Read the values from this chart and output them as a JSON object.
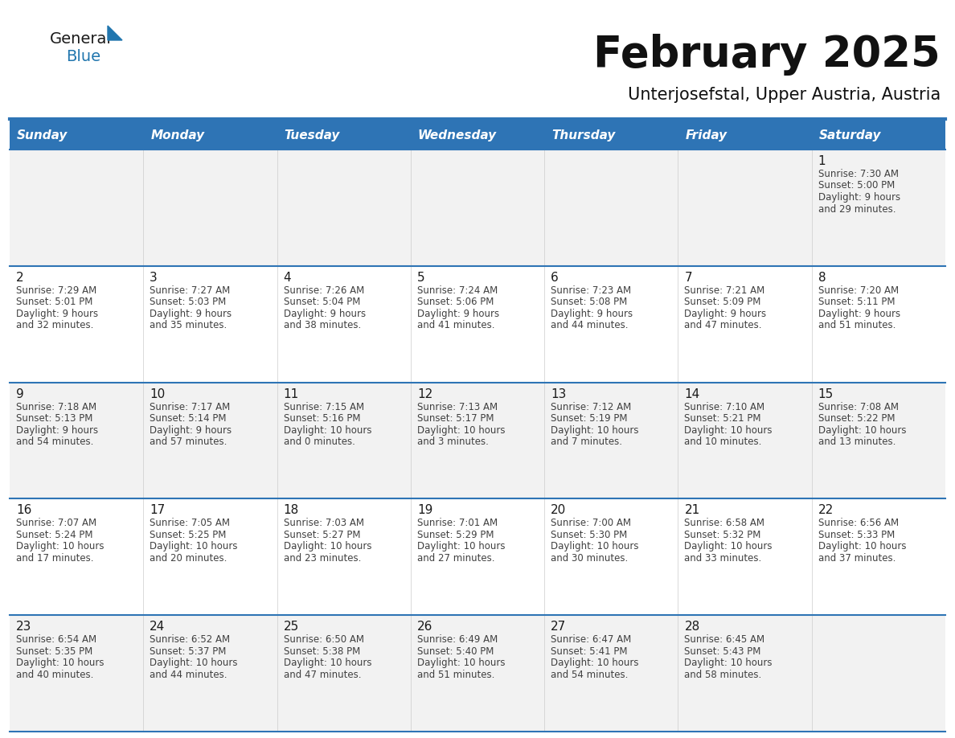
{
  "title": "February 2025",
  "subtitle": "Unterjosefstal, Upper Austria, Austria",
  "header_bg": "#2E74B5",
  "header_text": "#FFFFFF",
  "row_bg": [
    "#F2F2F2",
    "#FFFFFF",
    "#F2F2F2",
    "#FFFFFF",
    "#F2F2F2"
  ],
  "day_names": [
    "Sunday",
    "Monday",
    "Tuesday",
    "Wednesday",
    "Thursday",
    "Friday",
    "Saturday"
  ],
  "days": [
    {
      "day": 1,
      "col": 6,
      "row": 0,
      "sunrise": "7:30 AM",
      "sunset": "5:00 PM",
      "daylight_line1": "Daylight: 9 hours",
      "daylight_line2": "and 29 minutes."
    },
    {
      "day": 2,
      "col": 0,
      "row": 1,
      "sunrise": "7:29 AM",
      "sunset": "5:01 PM",
      "daylight_line1": "Daylight: 9 hours",
      "daylight_line2": "and 32 minutes."
    },
    {
      "day": 3,
      "col": 1,
      "row": 1,
      "sunrise": "7:27 AM",
      "sunset": "5:03 PM",
      "daylight_line1": "Daylight: 9 hours",
      "daylight_line2": "and 35 minutes."
    },
    {
      "day": 4,
      "col": 2,
      "row": 1,
      "sunrise": "7:26 AM",
      "sunset": "5:04 PM",
      "daylight_line1": "Daylight: 9 hours",
      "daylight_line2": "and 38 minutes."
    },
    {
      "day": 5,
      "col": 3,
      "row": 1,
      "sunrise": "7:24 AM",
      "sunset": "5:06 PM",
      "daylight_line1": "Daylight: 9 hours",
      "daylight_line2": "and 41 minutes."
    },
    {
      "day": 6,
      "col": 4,
      "row": 1,
      "sunrise": "7:23 AM",
      "sunset": "5:08 PM",
      "daylight_line1": "Daylight: 9 hours",
      "daylight_line2": "and 44 minutes."
    },
    {
      "day": 7,
      "col": 5,
      "row": 1,
      "sunrise": "7:21 AM",
      "sunset": "5:09 PM",
      "daylight_line1": "Daylight: 9 hours",
      "daylight_line2": "and 47 minutes."
    },
    {
      "day": 8,
      "col": 6,
      "row": 1,
      "sunrise": "7:20 AM",
      "sunset": "5:11 PM",
      "daylight_line1": "Daylight: 9 hours",
      "daylight_line2": "and 51 minutes."
    },
    {
      "day": 9,
      "col": 0,
      "row": 2,
      "sunrise": "7:18 AM",
      "sunset": "5:13 PM",
      "daylight_line1": "Daylight: 9 hours",
      "daylight_line2": "and 54 minutes."
    },
    {
      "day": 10,
      "col": 1,
      "row": 2,
      "sunrise": "7:17 AM",
      "sunset": "5:14 PM",
      "daylight_line1": "Daylight: 9 hours",
      "daylight_line2": "and 57 minutes."
    },
    {
      "day": 11,
      "col": 2,
      "row": 2,
      "sunrise": "7:15 AM",
      "sunset": "5:16 PM",
      "daylight_line1": "Daylight: 10 hours",
      "daylight_line2": "and 0 minutes."
    },
    {
      "day": 12,
      "col": 3,
      "row": 2,
      "sunrise": "7:13 AM",
      "sunset": "5:17 PM",
      "daylight_line1": "Daylight: 10 hours",
      "daylight_line2": "and 3 minutes."
    },
    {
      "day": 13,
      "col": 4,
      "row": 2,
      "sunrise": "7:12 AM",
      "sunset": "5:19 PM",
      "daylight_line1": "Daylight: 10 hours",
      "daylight_line2": "and 7 minutes."
    },
    {
      "day": 14,
      "col": 5,
      "row": 2,
      "sunrise": "7:10 AM",
      "sunset": "5:21 PM",
      "daylight_line1": "Daylight: 10 hours",
      "daylight_line2": "and 10 minutes."
    },
    {
      "day": 15,
      "col": 6,
      "row": 2,
      "sunrise": "7:08 AM",
      "sunset": "5:22 PM",
      "daylight_line1": "Daylight: 10 hours",
      "daylight_line2": "and 13 minutes."
    },
    {
      "day": 16,
      "col": 0,
      "row": 3,
      "sunrise": "7:07 AM",
      "sunset": "5:24 PM",
      "daylight_line1": "Daylight: 10 hours",
      "daylight_line2": "and 17 minutes."
    },
    {
      "day": 17,
      "col": 1,
      "row": 3,
      "sunrise": "7:05 AM",
      "sunset": "5:25 PM",
      "daylight_line1": "Daylight: 10 hours",
      "daylight_line2": "and 20 minutes."
    },
    {
      "day": 18,
      "col": 2,
      "row": 3,
      "sunrise": "7:03 AM",
      "sunset": "5:27 PM",
      "daylight_line1": "Daylight: 10 hours",
      "daylight_line2": "and 23 minutes."
    },
    {
      "day": 19,
      "col": 3,
      "row": 3,
      "sunrise": "7:01 AM",
      "sunset": "5:29 PM",
      "daylight_line1": "Daylight: 10 hours",
      "daylight_line2": "and 27 minutes."
    },
    {
      "day": 20,
      "col": 4,
      "row": 3,
      "sunrise": "7:00 AM",
      "sunset": "5:30 PM",
      "daylight_line1": "Daylight: 10 hours",
      "daylight_line2": "and 30 minutes."
    },
    {
      "day": 21,
      "col": 5,
      "row": 3,
      "sunrise": "6:58 AM",
      "sunset": "5:32 PM",
      "daylight_line1": "Daylight: 10 hours",
      "daylight_line2": "and 33 minutes."
    },
    {
      "day": 22,
      "col": 6,
      "row": 3,
      "sunrise": "6:56 AM",
      "sunset": "5:33 PM",
      "daylight_line1": "Daylight: 10 hours",
      "daylight_line2": "and 37 minutes."
    },
    {
      "day": 23,
      "col": 0,
      "row": 4,
      "sunrise": "6:54 AM",
      "sunset": "5:35 PM",
      "daylight_line1": "Daylight: 10 hours",
      "daylight_line2": "and 40 minutes."
    },
    {
      "day": 24,
      "col": 1,
      "row": 4,
      "sunrise": "6:52 AM",
      "sunset": "5:37 PM",
      "daylight_line1": "Daylight: 10 hours",
      "daylight_line2": "and 44 minutes."
    },
    {
      "day": 25,
      "col": 2,
      "row": 4,
      "sunrise": "6:50 AM",
      "sunset": "5:38 PM",
      "daylight_line1": "Daylight: 10 hours",
      "daylight_line2": "and 47 minutes."
    },
    {
      "day": 26,
      "col": 3,
      "row": 4,
      "sunrise": "6:49 AM",
      "sunset": "5:40 PM",
      "daylight_line1": "Daylight: 10 hours",
      "daylight_line2": "and 51 minutes."
    },
    {
      "day": 27,
      "col": 4,
      "row": 4,
      "sunrise": "6:47 AM",
      "sunset": "5:41 PM",
      "daylight_line1": "Daylight: 10 hours",
      "daylight_line2": "and 54 minutes."
    },
    {
      "day": 28,
      "col": 5,
      "row": 4,
      "sunrise": "6:45 AM",
      "sunset": "5:43 PM",
      "daylight_line1": "Daylight: 10 hours",
      "daylight_line2": "and 58 minutes."
    }
  ],
  "num_rows": 5,
  "num_cols": 7,
  "cell_text_color": "#404040",
  "day_num_color": "#1a1a1a",
  "line_color": "#2E74B5",
  "logo_general_color": "#1a1a1a",
  "logo_blue_color": "#2176AE"
}
